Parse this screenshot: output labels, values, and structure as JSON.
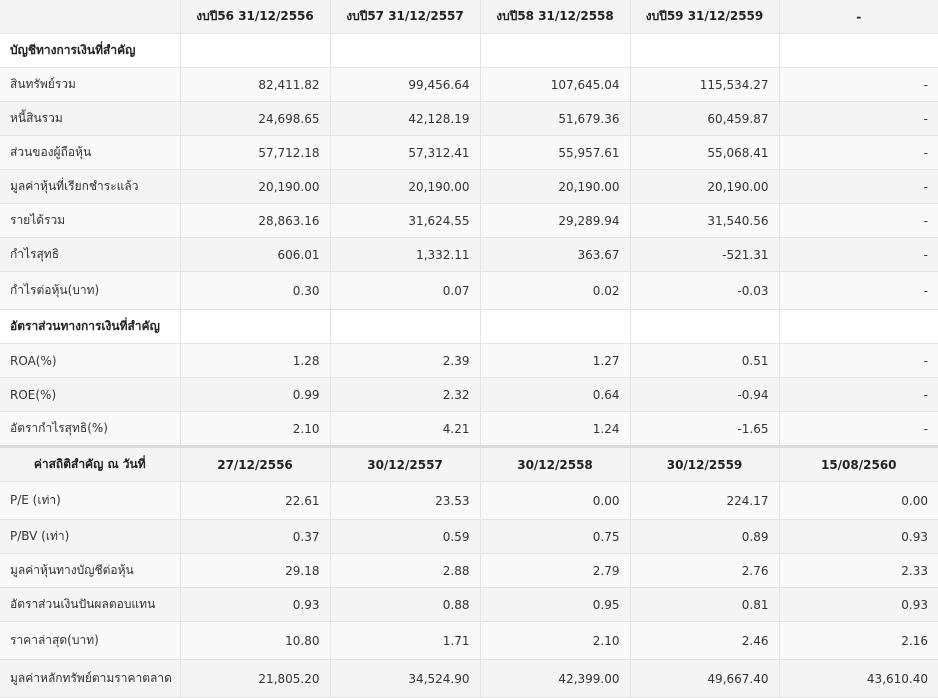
{
  "financial": {
    "headers": [
      "",
      "งบปี56 31/12/2556",
      "งบปี57 31/12/2557",
      "งบปี58 31/12/2558",
      "งบปี59 31/12/2559",
      "-"
    ],
    "section1": "บัญชีทางการเงินที่สำคัญ",
    "rows1": [
      {
        "label": "สินทรัพย์รวม",
        "v": [
          "82,411.82",
          "99,456.64",
          "107,645.04",
          "115,534.27",
          "-"
        ]
      },
      {
        "label": "หนี้สินรวม",
        "v": [
          "24,698.65",
          "42,128.19",
          "51,679.36",
          "60,459.87",
          "-"
        ]
      },
      {
        "label": "ส่วนของผู้ถือหุ้น",
        "v": [
          "57,712.18",
          "57,312.41",
          "55,957.61",
          "55,068.41",
          "-"
        ]
      },
      {
        "label": "มูลค่าหุ้นที่เรียกชำระแล้ว",
        "v": [
          "20,190.00",
          "20,190.00",
          "20,190.00",
          "20,190.00",
          "-"
        ]
      },
      {
        "label": "รายได้รวม",
        "v": [
          "28,863.16",
          "31,624.55",
          "29,289.94",
          "31,540.56",
          "-"
        ]
      },
      {
        "label": "กำไรสุทธิ",
        "v": [
          "606.01",
          "1,332.11",
          "363.67",
          "-521.31",
          "-"
        ]
      },
      {
        "label": "กำไรต่อหุ้น(บาท)",
        "v": [
          "0.30",
          "0.07",
          "0.02",
          "-0.03",
          "-"
        ]
      }
    ],
    "section2": "อัตราส่วนทางการเงินที่สำคัญ",
    "rows2": [
      {
        "label": "ROA(%)",
        "v": [
          "1.28",
          "2.39",
          "1.27",
          "0.51",
          "-"
        ]
      },
      {
        "label": "ROE(%)",
        "v": [
          "0.99",
          "2.32",
          "0.64",
          "-0.94",
          "-"
        ]
      },
      {
        "label": "อัตรากำไรสุทธิ(%)",
        "v": [
          "2.10",
          "4.21",
          "1.24",
          "-1.65",
          "-"
        ]
      }
    ]
  },
  "stats": {
    "headers": [
      "ค่าสถิติสำคัญ ณ วันที่",
      "27/12/2556",
      "30/12/2557",
      "30/12/2558",
      "30/12/2559",
      "15/08/2560"
    ],
    "rows": [
      {
        "label": "P/E (เท่า)",
        "v": [
          "22.61",
          "23.53",
          "0.00",
          "224.17",
          "0.00"
        ]
      },
      {
        "label": "P/BV (เท่า)",
        "v": [
          "0.37",
          "0.59",
          "0.75",
          "0.89",
          "0.93"
        ]
      },
      {
        "label": "มูลค่าหุ้นทางบัญชีต่อหุ้น",
        "v": [
          "29.18",
          "2.88",
          "2.79",
          "2.76",
          "2.33"
        ]
      },
      {
        "label": "อัตราส่วนเงินปันผลตอบแทน",
        "v": [
          "0.93",
          "0.88",
          "0.95",
          "0.81",
          "0.93"
        ]
      },
      {
        "label": "ราคาล่าสุด(บาท)",
        "v": [
          "10.80",
          "1.71",
          "2.10",
          "2.46",
          "2.16"
        ]
      },
      {
        "label": "มูลค่าหลักทรัพย์ตามราคาตลาด",
        "v": [
          "21,805.20",
          "34,524.90",
          "42,399.00",
          "49,667.40",
          "43,610.40"
        ]
      }
    ]
  }
}
